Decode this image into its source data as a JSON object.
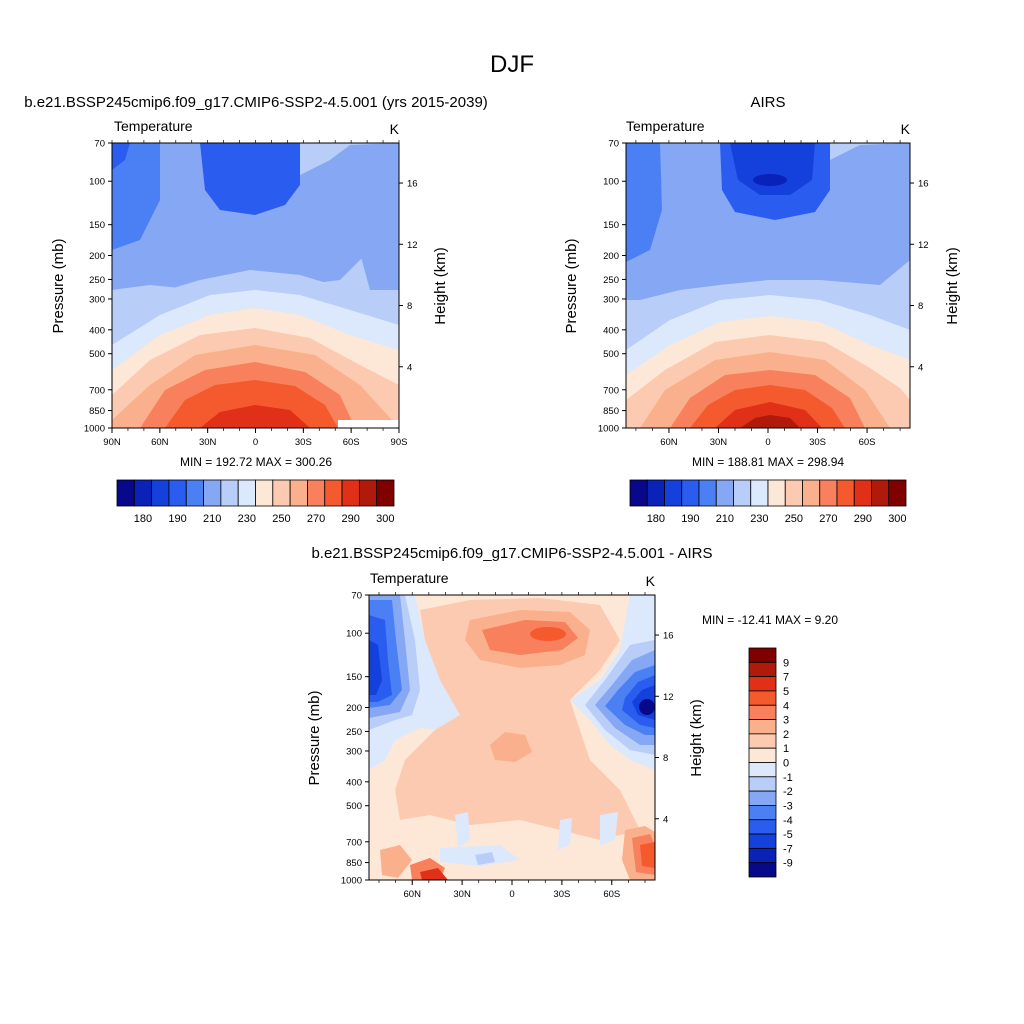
{
  "figure": {
    "title": "DJF"
  },
  "panels": [
    {
      "id": "model",
      "title": "b.e21.BSSP245cmip6.f09_g17.CMIP6-SSP2-4.5.001 (yrs 2015-2039)",
      "left_label": "Temperature",
      "right_label": "K",
      "xticks": [
        "90N",
        "60N",
        "30N",
        "0",
        "30S",
        "60S",
        "90S"
      ],
      "stats": "MIN = 192.72  MAX = 300.26",
      "fields": [
        "temperature"
      ]
    },
    {
      "id": "obs",
      "title": "AIRS",
      "left_label": "Temperature",
      "right_label": "K",
      "xticks": [
        "60N",
        "30N",
        "0",
        "30S",
        "60S"
      ],
      "stats": "MIN = 188.81  MAX = 298.94"
    },
    {
      "id": "diff",
      "title": "b.e21.BSSP245cmip6.f09_g17.CMIP6-SSP2-4.5.001 - AIRS",
      "left_label": "Temperature",
      "right_label": "K",
      "xticks": [
        "60N",
        "30N",
        "0",
        "30S",
        "60S"
      ],
      "stats": "MIN = -12.41  MAX =   9.20"
    }
  ],
  "axes": {
    "ylabel": "Pressure (mb)",
    "y2label": "Height (km)",
    "pressure_ticks": [
      "70",
      "100",
      "150",
      "200",
      "250",
      "300",
      "400",
      "500",
      "700",
      "850",
      "1000"
    ],
    "height_ticks": [
      "16",
      "12",
      "8",
      "4"
    ]
  },
  "colorbars": {
    "abs": {
      "labels": [
        "180",
        "190",
        "210",
        "230",
        "250",
        "270",
        "290",
        "300"
      ],
      "colors": [
        "#08088a",
        "#0a22b8",
        "#1440dc",
        "#2a5cf0",
        "#4a80f4",
        "#86a8f4",
        "#b8cef8",
        "#dce8fc",
        "#fde8d8",
        "#fccab0",
        "#fab08c",
        "#f8805c",
        "#f45a2e",
        "#e03018",
        "#b01a0a",
        "#800000"
      ]
    },
    "diff": {
      "labels": [
        "9",
        "7",
        "5",
        "4",
        "3",
        "2",
        "1",
        "0",
        "-1",
        "-2",
        "-3",
        "-4",
        "-5",
        "-7",
        "-9"
      ],
      "colors": [
        "#800000",
        "#b01a0a",
        "#e03018",
        "#f45a2e",
        "#f8805c",
        "#fab08c",
        "#fccab0",
        "#fde8d8",
        "#dce8fc",
        "#b8cef8",
        "#86a8f4",
        "#4a80f4",
        "#2a5cf0",
        "#1440dc",
        "#0a22b8",
        "#08088a"
      ]
    }
  },
  "chart_data": [
    {
      "type": "heatmap",
      "title": "b.e21.BSSP245cmip6.f09_g17.CMIP6-SSP2-4.5.001 (yrs 2015-2039)",
      "variable": "Temperature",
      "units": "K",
      "x": [
        "90N",
        "60N",
        "30N",
        "0",
        "30S",
        "60S",
        "90S"
      ],
      "y_pressure_mb": [
        70,
        100,
        150,
        200,
        250,
        300,
        400,
        500,
        700,
        850,
        1000
      ],
      "min": 192.72,
      "max": 300.26,
      "contour_levels": [
        180,
        185,
        190,
        200,
        210,
        220,
        230,
        240,
        250,
        260,
        270,
        280,
        290,
        295,
        300
      ]
    },
    {
      "type": "heatmap",
      "title": "AIRS",
      "variable": "Temperature",
      "units": "K",
      "x": [
        "60N",
        "30N",
        "0",
        "30S",
        "60S"
      ],
      "y_pressure_mb": [
        70,
        100,
        150,
        200,
        250,
        300,
        400,
        500,
        700,
        850,
        1000
      ],
      "min": 188.81,
      "max": 298.94,
      "contour_levels": [
        180,
        185,
        190,
        200,
        210,
        220,
        230,
        240,
        250,
        260,
        270,
        280,
        290,
        295,
        300
      ]
    },
    {
      "type": "heatmap",
      "title": "b.e21.BSSP245cmip6.f09_g17.CMIP6-SSP2-4.5.001 - AIRS",
      "variable": "Temperature",
      "units": "K",
      "x": [
        "60N",
        "30N",
        "0",
        "30S",
        "60S"
      ],
      "y_pressure_mb": [
        70,
        100,
        150,
        200,
        250,
        300,
        400,
        500,
        700,
        850,
        1000
      ],
      "min": -12.41,
      "max": 9.2,
      "contour_levels": [
        -9,
        -7,
        -5,
        -4,
        -3,
        -2,
        -1,
        0,
        1,
        2,
        3,
        4,
        5,
        7,
        9
      ]
    }
  ]
}
